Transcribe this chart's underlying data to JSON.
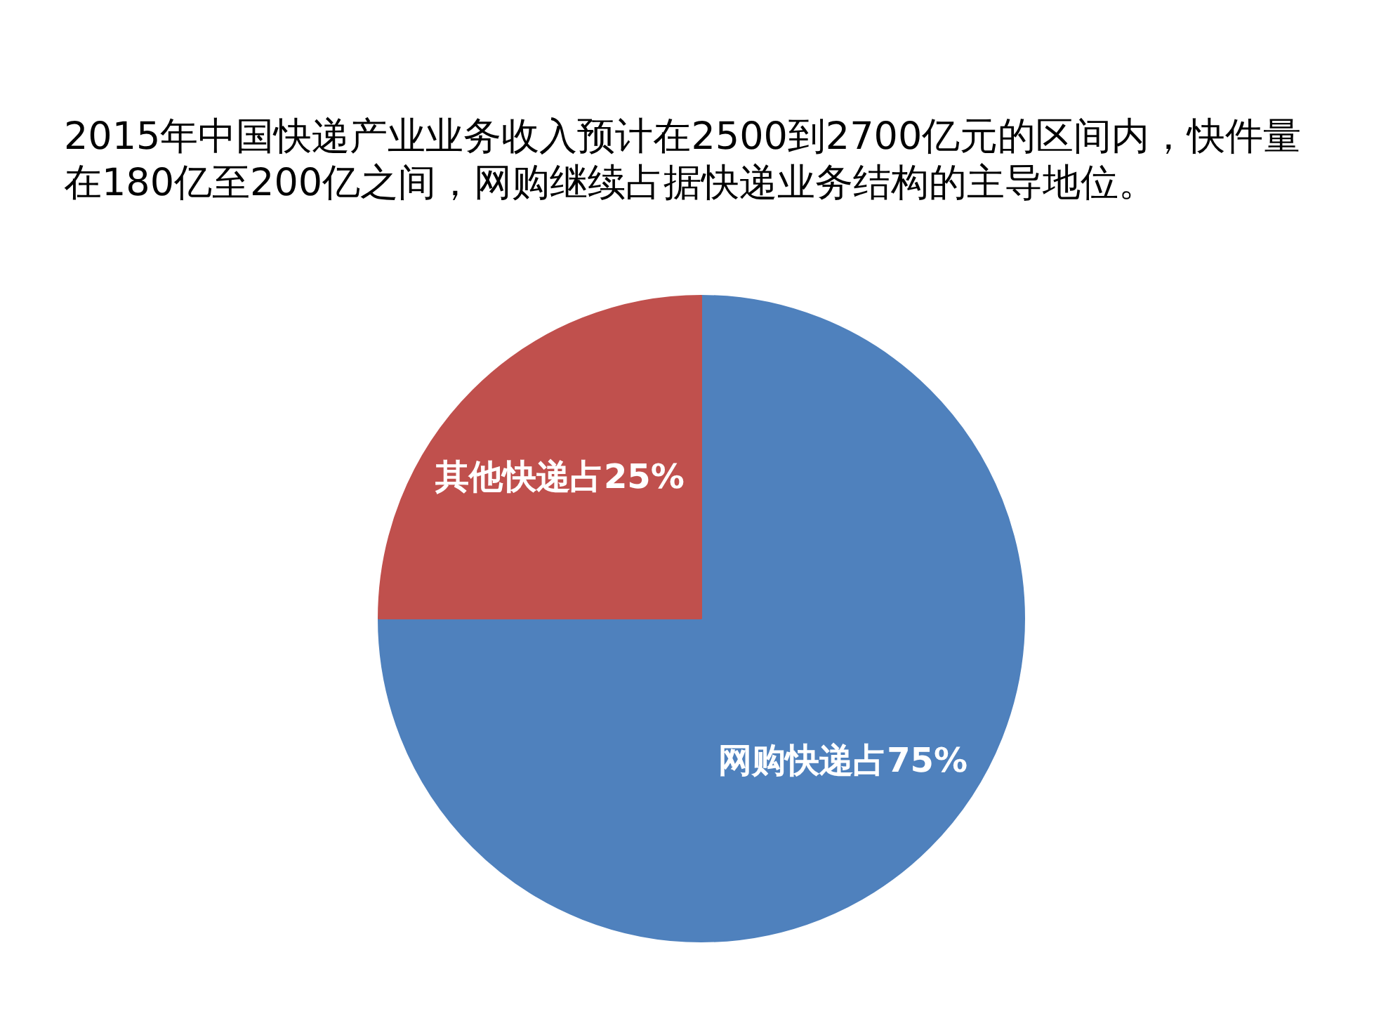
{
  "chart_data": {
    "type": "pie",
    "title": "2015年中国快递产业业务收入预计在2500到2700亿元的区间内，快件量在180亿至200亿之间，网购继续占据快递业务结构的主导地位。",
    "categories": [
      "网购快递占75%",
      "其他快递占25%"
    ],
    "values": [
      75,
      25
    ],
    "colors": [
      "#4f81bd",
      "#c0504d"
    ]
  }
}
